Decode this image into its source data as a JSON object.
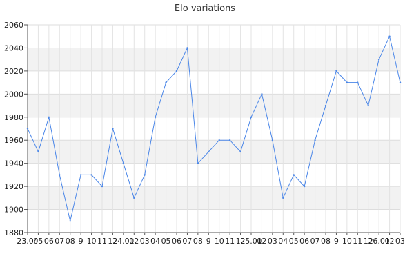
{
  "chart_data": {
    "type": "line",
    "title": "Elo variations",
    "xlabel": "",
    "ylabel": "",
    "ylim": [
      1880,
      2060
    ],
    "yticks": [
      1880,
      1900,
      1920,
      1940,
      1960,
      1980,
      2000,
      2020,
      2040,
      2060
    ],
    "grid": true,
    "categories": [
      "23.04",
      "05",
      "06",
      "07",
      "08",
      "9",
      "10",
      "11",
      "12",
      "24.01",
      "02",
      "03",
      "04",
      "05",
      "06",
      "07",
      "08",
      "9",
      "10",
      "11",
      "12",
      "25.01",
      "02",
      "03",
      "04",
      "05",
      "06",
      "07",
      "08",
      "9",
      "10",
      "11",
      "12",
      "26.01",
      "02",
      "03"
    ],
    "series": [
      {
        "color": "#4a86e8",
        "values": [
          1970,
          1950,
          1980,
          1930,
          1890,
          1930,
          1930,
          1920,
          1970,
          1940,
          1910,
          1930,
          1980,
          2010,
          2020,
          2040,
          1940,
          1950,
          1960,
          1960,
          1950,
          1980,
          2000,
          1960,
          1910,
          1930,
          1920,
          1960,
          1990,
          2020,
          2010,
          2010,
          1990,
          2030,
          2050,
          2010
        ]
      }
    ]
  }
}
